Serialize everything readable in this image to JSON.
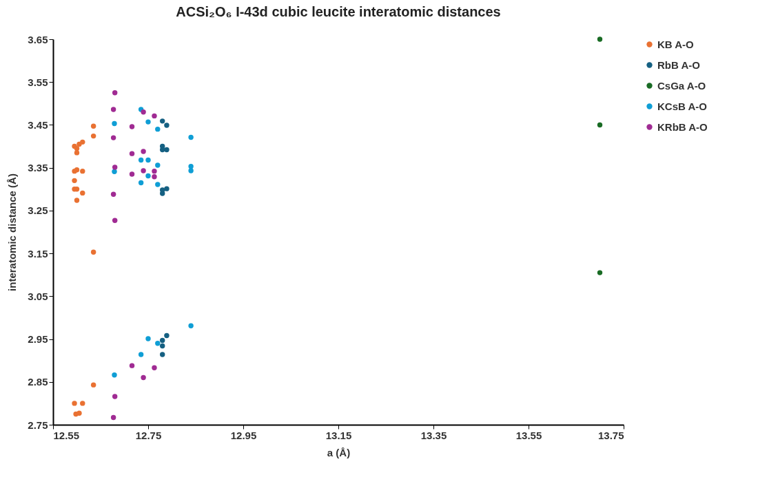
{
  "chart_data": {
    "type": "scatter",
    "title": "ACSi₂O₆ I-43d cubic leucite interatomic distances",
    "xlabel": "a (Å)",
    "ylabel": "interatomic distance (Å)",
    "xlim": [
      12.55,
      13.75
    ],
    "xticks": [
      12.55,
      12.75,
      12.95,
      13.15,
      13.35,
      13.55,
      13.75
    ],
    "ylim": [
      2.75,
      3.65
    ],
    "yticks": [
      2.75,
      2.85,
      2.95,
      3.05,
      3.15,
      3.25,
      3.35,
      3.45,
      3.55,
      3.65
    ],
    "grid": false,
    "legend": "right",
    "marker": "circle",
    "series": [
      {
        "name": "KB A-O",
        "color": "#e97132",
        "x": [
          12.635,
          12.635,
          12.595,
          12.6,
          12.6,
          12.605,
          12.612,
          12.595,
          12.6,
          12.612,
          12.595,
          12.595,
          12.6,
          12.612,
          12.6,
          12.635,
          12.635,
          12.595,
          12.612,
          12.598,
          12.605
        ],
        "values": [
          3.447,
          3.424,
          3.4,
          3.395,
          3.385,
          3.405,
          3.41,
          3.342,
          3.345,
          3.342,
          3.32,
          3.3,
          3.3,
          3.291,
          3.274,
          3.153,
          2.843,
          2.8,
          2.8,
          2.775,
          2.777
        ]
      },
      {
        "name": "RbB A-O",
        "color": "#156082",
        "x": [
          12.78,
          12.789,
          12.78,
          12.789,
          12.78,
          12.78,
          12.789,
          12.78,
          12.789,
          12.78,
          12.78,
          12.78
        ],
        "values": [
          3.459,
          3.449,
          3.4,
          3.392,
          3.392,
          3.298,
          3.301,
          3.29,
          2.958,
          2.947,
          2.934,
          2.914
        ]
      },
      {
        "name": "CsGa A-O",
        "color": "#196b24",
        "x": [
          13.7,
          13.7,
          13.7
        ],
        "values": [
          3.65,
          3.45,
          3.105
        ]
      },
      {
        "name": "KCsB A-O",
        "color": "#0f9ed5",
        "x": [
          12.735,
          12.75,
          12.77,
          12.679,
          12.84,
          12.735,
          12.75,
          12.77,
          12.679,
          12.75,
          12.735,
          12.77,
          12.84,
          12.84,
          12.84,
          12.75,
          12.77,
          12.735,
          12.679
        ],
        "values": [
          3.486,
          3.457,
          3.44,
          3.453,
          3.421,
          3.368,
          3.368,
          3.356,
          3.341,
          3.331,
          3.315,
          3.311,
          3.353,
          3.343,
          2.981,
          2.951,
          2.94,
          2.914,
          2.866
        ]
      },
      {
        "name": "KRbB A-O",
        "color": "#a02b93",
        "x": [
          12.68,
          12.677,
          12.677,
          12.716,
          12.74,
          12.763,
          12.716,
          12.74,
          12.68,
          12.716,
          12.74,
          12.763,
          12.763,
          12.677,
          12.68,
          12.716,
          12.763,
          12.74,
          12.68,
          12.677
        ],
        "values": [
          3.525,
          3.486,
          3.42,
          3.446,
          3.48,
          3.471,
          3.383,
          3.388,
          3.351,
          3.335,
          3.343,
          3.342,
          3.329,
          3.288,
          3.227,
          2.888,
          2.883,
          2.86,
          2.816,
          2.767
        ]
      }
    ]
  }
}
